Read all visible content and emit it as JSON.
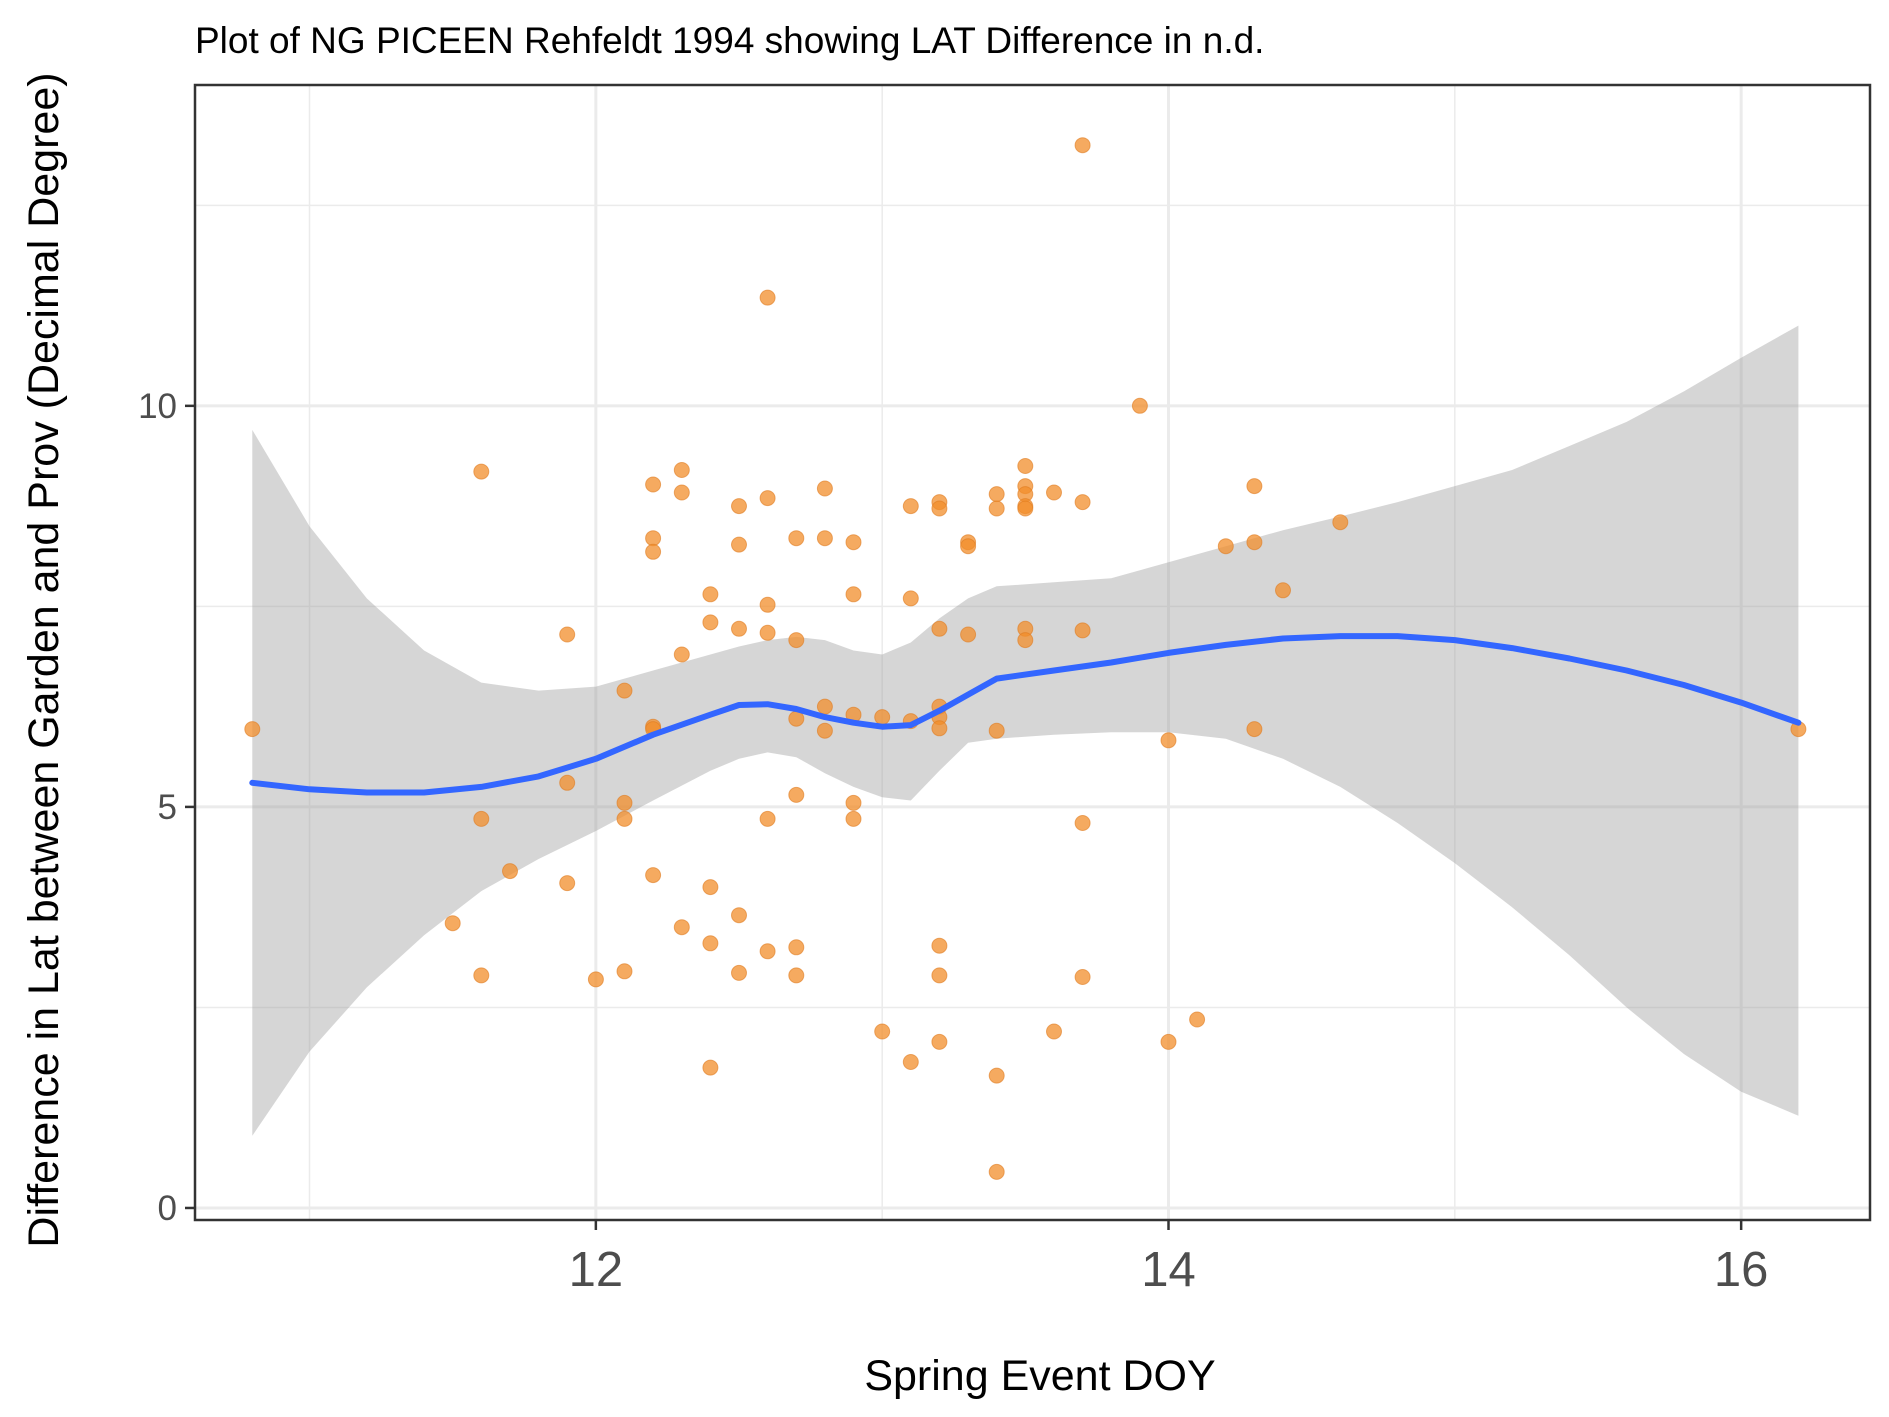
{
  "chart_data": {
    "type": "scatter",
    "title": "Plot of NG PICEEN Rehfeldt 1994 showing LAT Difference in n.d.",
    "xlabel": "Spring Event DOY",
    "ylabel": "Difference in Lat between Garden and Prov (Decimal Degree)",
    "xlim": [
      10.6,
      16.45
    ],
    "ylim": [
      -0.15,
      14.0
    ],
    "x_ticks": [
      {
        "value": 12,
        "label": "12"
      },
      {
        "value": 14,
        "label": "14"
      },
      {
        "value": 16,
        "label": "16"
      }
    ],
    "y_ticks": [
      {
        "value": 0,
        "label": "0"
      },
      {
        "value": 5,
        "label": "5"
      },
      {
        "value": 10,
        "label": "10"
      }
    ],
    "x_minor": [
      11,
      13,
      15
    ],
    "y_minor": [
      2.5,
      7.5,
      12.5
    ],
    "grid": true,
    "colors": {
      "points": "#f28e2b",
      "points_outline": "#e07b1f",
      "smooth_line": "#3366ff",
      "ribbon": "#999999",
      "panel_border": "#333333",
      "grid": "#ebebeb"
    },
    "points": [
      [
        10.8,
        5.97
      ],
      [
        11.6,
        9.18
      ],
      [
        11.6,
        4.85
      ],
      [
        11.6,
        2.9
      ],
      [
        11.5,
        3.55
      ],
      [
        11.7,
        4.2
      ],
      [
        11.9,
        7.15
      ],
      [
        11.9,
        5.3
      ],
      [
        11.9,
        4.05
      ],
      [
        12.0,
        2.85
      ],
      [
        12.1,
        6.45
      ],
      [
        12.1,
        5.05
      ],
      [
        12.1,
        4.85
      ],
      [
        12.1,
        2.95
      ],
      [
        12.2,
        9.02
      ],
      [
        12.2,
        8.35
      ],
      [
        12.2,
        8.18
      ],
      [
        12.2,
        6.0
      ],
      [
        12.2,
        5.97
      ],
      [
        12.2,
        4.15
      ],
      [
        12.3,
        9.2
      ],
      [
        12.3,
        8.92
      ],
      [
        12.3,
        6.9
      ],
      [
        12.3,
        3.5
      ],
      [
        12.4,
        7.65
      ],
      [
        12.4,
        7.3
      ],
      [
        12.4,
        4.0
      ],
      [
        12.4,
        3.3
      ],
      [
        12.4,
        1.75
      ],
      [
        12.5,
        8.75
      ],
      [
        12.5,
        8.27
      ],
      [
        12.5,
        7.22
      ],
      [
        12.5,
        3.65
      ],
      [
        12.5,
        2.93
      ],
      [
        12.6,
        11.35
      ],
      [
        12.6,
        8.85
      ],
      [
        12.6,
        7.52
      ],
      [
        12.6,
        7.17
      ],
      [
        12.6,
        4.85
      ],
      [
        12.6,
        3.2
      ],
      [
        12.7,
        8.35
      ],
      [
        12.7,
        7.08
      ],
      [
        12.7,
        6.1
      ],
      [
        12.7,
        5.15
      ],
      [
        12.7,
        3.25
      ],
      [
        12.7,
        2.9
      ],
      [
        12.8,
        8.97
      ],
      [
        12.8,
        8.35
      ],
      [
        12.8,
        6.25
      ],
      [
        12.8,
        5.95
      ],
      [
        12.9,
        8.3
      ],
      [
        12.9,
        7.65
      ],
      [
        12.9,
        6.15
      ],
      [
        12.9,
        5.05
      ],
      [
        12.9,
        4.85
      ],
      [
        13.0,
        6.12
      ],
      [
        13.0,
        2.2
      ],
      [
        13.1,
        8.75
      ],
      [
        13.1,
        7.6
      ],
      [
        13.1,
        6.07
      ],
      [
        13.1,
        1.82
      ],
      [
        13.2,
        8.8
      ],
      [
        13.2,
        8.72
      ],
      [
        13.2,
        7.22
      ],
      [
        13.2,
        6.25
      ],
      [
        13.2,
        6.12
      ],
      [
        13.2,
        5.98
      ],
      [
        13.2,
        3.27
      ],
      [
        13.2,
        2.9
      ],
      [
        13.2,
        2.07
      ],
      [
        13.3,
        8.3
      ],
      [
        13.3,
        8.25
      ],
      [
        13.3,
        7.15
      ],
      [
        13.4,
        8.9
      ],
      [
        13.4,
        8.72
      ],
      [
        13.4,
        5.95
      ],
      [
        13.4,
        1.65
      ],
      [
        13.4,
        0.45
      ],
      [
        13.5,
        9.25
      ],
      [
        13.5,
        9.0
      ],
      [
        13.5,
        8.9
      ],
      [
        13.5,
        8.75
      ],
      [
        13.5,
        8.72
      ],
      [
        13.5,
        7.22
      ],
      [
        13.5,
        7.08
      ],
      [
        13.6,
        8.92
      ],
      [
        13.6,
        2.2
      ],
      [
        13.7,
        13.25
      ],
      [
        13.7,
        8.8
      ],
      [
        13.7,
        7.2
      ],
      [
        13.7,
        4.8
      ],
      [
        13.7,
        2.88
      ],
      [
        13.9,
        10.0
      ],
      [
        14.0,
        5.83
      ],
      [
        14.0,
        2.07
      ],
      [
        14.1,
        2.35
      ],
      [
        14.2,
        8.25
      ],
      [
        14.3,
        9.0
      ],
      [
        14.3,
        8.3
      ],
      [
        14.3,
        5.97
      ],
      [
        14.4,
        7.7
      ],
      [
        14.6,
        8.55
      ],
      [
        16.2,
        5.97
      ]
    ],
    "smooth": {
      "x": [
        10.8,
        11.0,
        11.2,
        11.4,
        11.6,
        11.8,
        12.0,
        12.2,
        12.4,
        12.5,
        12.6,
        12.7,
        12.8,
        12.9,
        13.0,
        13.1,
        13.2,
        13.3,
        13.4,
        13.6,
        13.8,
        14.0,
        14.2,
        14.4,
        14.6,
        14.8,
        15.0,
        15.2,
        15.4,
        15.6,
        15.8,
        16.0,
        16.2
      ],
      "y": [
        5.3,
        5.22,
        5.18,
        5.18,
        5.25,
        5.38,
        5.6,
        5.9,
        6.15,
        6.27,
        6.28,
        6.22,
        6.12,
        6.05,
        6.0,
        6.02,
        6.2,
        6.4,
        6.6,
        6.7,
        6.8,
        6.92,
        7.02,
        7.1,
        7.13,
        7.13,
        7.08,
        6.98,
        6.85,
        6.7,
        6.52,
        6.3,
        6.05
      ],
      "lower": [
        0.9,
        1.95,
        2.75,
        3.4,
        3.95,
        4.35,
        4.7,
        5.08,
        5.45,
        5.6,
        5.68,
        5.62,
        5.42,
        5.25,
        5.12,
        5.08,
        5.45,
        5.8,
        5.85,
        5.9,
        5.93,
        5.93,
        5.85,
        5.6,
        5.25,
        4.8,
        4.3,
        3.75,
        3.15,
        2.5,
        1.92,
        1.45,
        1.15
      ],
      "upper": [
        9.7,
        8.5,
        7.6,
        6.95,
        6.55,
        6.45,
        6.5,
        6.7,
        6.9,
        7.0,
        7.08,
        7.12,
        7.08,
        6.95,
        6.9,
        7.05,
        7.35,
        7.6,
        7.75,
        7.8,
        7.85,
        8.05,
        8.25,
        8.45,
        8.62,
        8.8,
        9.0,
        9.2,
        9.5,
        9.8,
        10.18,
        10.6,
        11.0
      ]
    }
  }
}
